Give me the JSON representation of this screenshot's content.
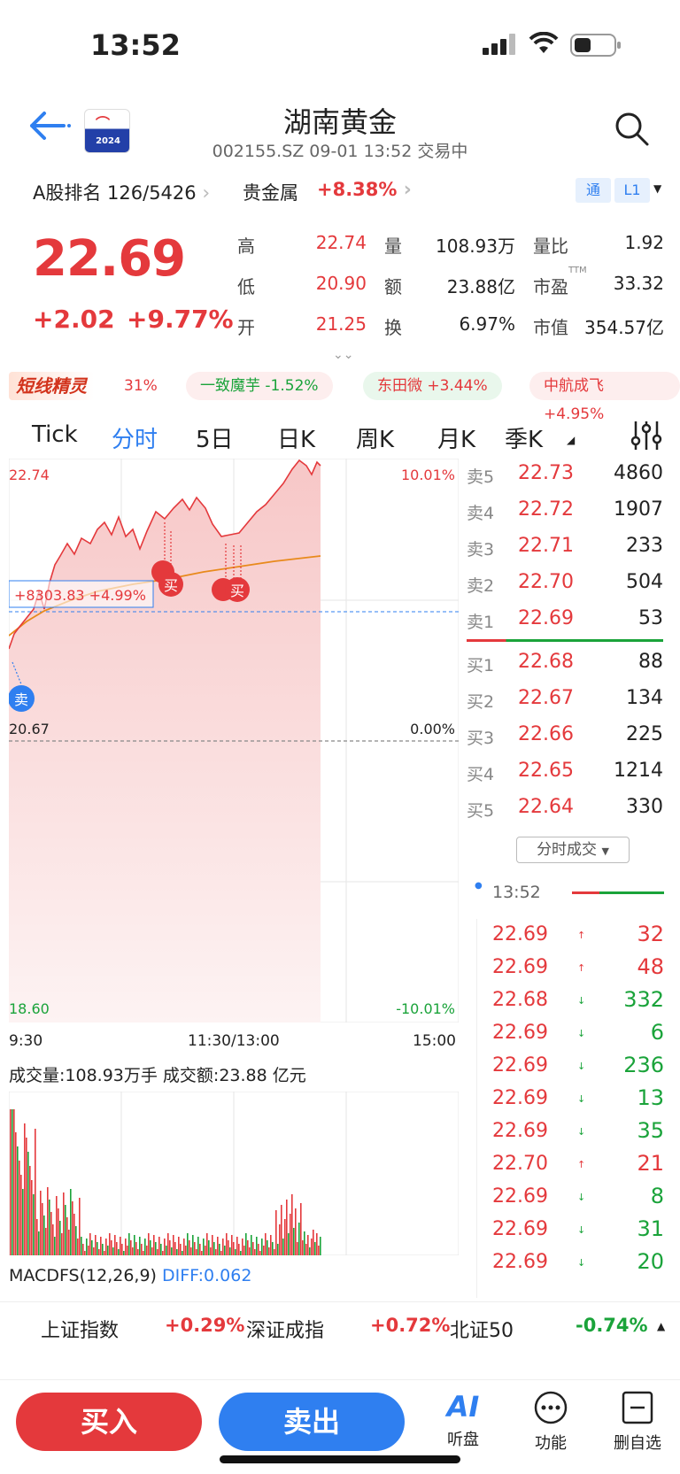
{
  "status": {
    "time": "13:52"
  },
  "header": {
    "name": "湖南黄金",
    "subtitle": "002155.SZ 09-01 13:52 交易中",
    "logo_text": "2024"
  },
  "rank": {
    "label": "A股排名 126/5426",
    "sector": "贵金属",
    "sector_pct": "+8.38%",
    "tag1": "通",
    "tag2": "L1"
  },
  "quote": {
    "price": "22.69",
    "change": "+2.02",
    "change_pct": "+9.77%",
    "stats": [
      [
        {
          "l": "高",
          "v": "22.74",
          "c": "red"
        },
        {
          "l": "量",
          "v": "108.93万",
          "c": "dark"
        },
        {
          "l": "量比",
          "v": "1.92",
          "c": "dark"
        }
      ],
      [
        {
          "l": "低",
          "v": "20.90",
          "c": "red"
        },
        {
          "l": "额",
          "v": "23.88亿",
          "c": "dark"
        },
        {
          "l": "市盈",
          "v": "33.32",
          "c": "dark"
        }
      ],
      [
        {
          "l": "开",
          "v": "21.25",
          "c": "red"
        },
        {
          "l": "换",
          "v": "6.97%",
          "c": "dark"
        },
        {
          "l": "市值",
          "v": "354.57亿",
          "c": "dark"
        }
      ]
    ],
    "ttm": "TTM"
  },
  "ticker": {
    "brand": "短线精灵",
    "items": [
      {
        "t": "31%",
        "c": "red"
      },
      {
        "t": "一致魔芋 -1.52%",
        "c": "green"
      },
      {
        "t": "东田微 +3.44%",
        "c": "red"
      },
      {
        "t": "中航成飞 +4.95%",
        "c": "red"
      }
    ]
  },
  "tabs": [
    "Tick",
    "分时",
    "5日",
    "日K",
    "周K",
    "月K",
    "季K"
  ],
  "chart": {
    "high": "22.74",
    "high_pct": "10.01%",
    "base": "20.67",
    "base_pct": "0.00%",
    "low": "18.60",
    "low_pct": "-10.01%",
    "avg_label": "+8303.83 +4.99%",
    "time_start": "9:30",
    "time_mid": "11:30/13:00",
    "time_end": "15:00",
    "marker_buy": "买",
    "marker_sell": "卖",
    "volume_text": "成交量:108.93万手 成交额:23.88 亿元",
    "macd_name": "MACDFS(12,26,9)",
    "macd_diff": "DIFF:0.062"
  },
  "orderbook": {
    "asks": [
      {
        "l": "卖5",
        "p": "22.73",
        "v": "4860"
      },
      {
        "l": "卖4",
        "p": "22.72",
        "v": "1907"
      },
      {
        "l": "卖3",
        "p": "22.71",
        "v": "233"
      },
      {
        "l": "卖2",
        "p": "22.70",
        "v": "504"
      },
      {
        "l": "卖1",
        "p": "22.69",
        "v": "53"
      }
    ],
    "bids": [
      {
        "l": "买1",
        "p": "22.68",
        "v": "88"
      },
      {
        "l": "买2",
        "p": "22.67",
        "v": "134"
      },
      {
        "l": "买3",
        "p": "22.66",
        "v": "225"
      },
      {
        "l": "买4",
        "p": "22.65",
        "v": "1214"
      },
      {
        "l": "买5",
        "p": "22.64",
        "v": "330"
      }
    ],
    "dropdown": "分时成交"
  },
  "trades": {
    "time": "13:52",
    "rows": [
      {
        "p": "22.69",
        "d": "up",
        "v": "32"
      },
      {
        "p": "22.69",
        "d": "up",
        "v": "48"
      },
      {
        "p": "22.68",
        "d": "down",
        "v": "332"
      },
      {
        "p": "22.69",
        "d": "down",
        "v": "6"
      },
      {
        "p": "22.69",
        "d": "down",
        "v": "236"
      },
      {
        "p": "22.69",
        "d": "down",
        "v": "13"
      },
      {
        "p": "22.69",
        "d": "down",
        "v": "35"
      },
      {
        "p": "22.70",
        "d": "up",
        "v": "21"
      },
      {
        "p": "22.69",
        "d": "down",
        "v": "8"
      },
      {
        "p": "22.69",
        "d": "down",
        "v": "31"
      },
      {
        "p": "22.69",
        "d": "down",
        "v": "20"
      }
    ]
  },
  "indices": [
    {
      "name": "上证指数",
      "pct": "+0.29%",
      "c": "red"
    },
    {
      "name": "深证成指",
      "pct": "+0.72%",
      "c": "red"
    },
    {
      "name": "北证50",
      "pct": "-0.74%",
      "c": "green"
    }
  ],
  "bottom": {
    "buy": "买入",
    "sell": "卖出",
    "ai": "AI",
    "ai_label": "听盘",
    "func_label": "功能",
    "fav_label": "删自选"
  }
}
